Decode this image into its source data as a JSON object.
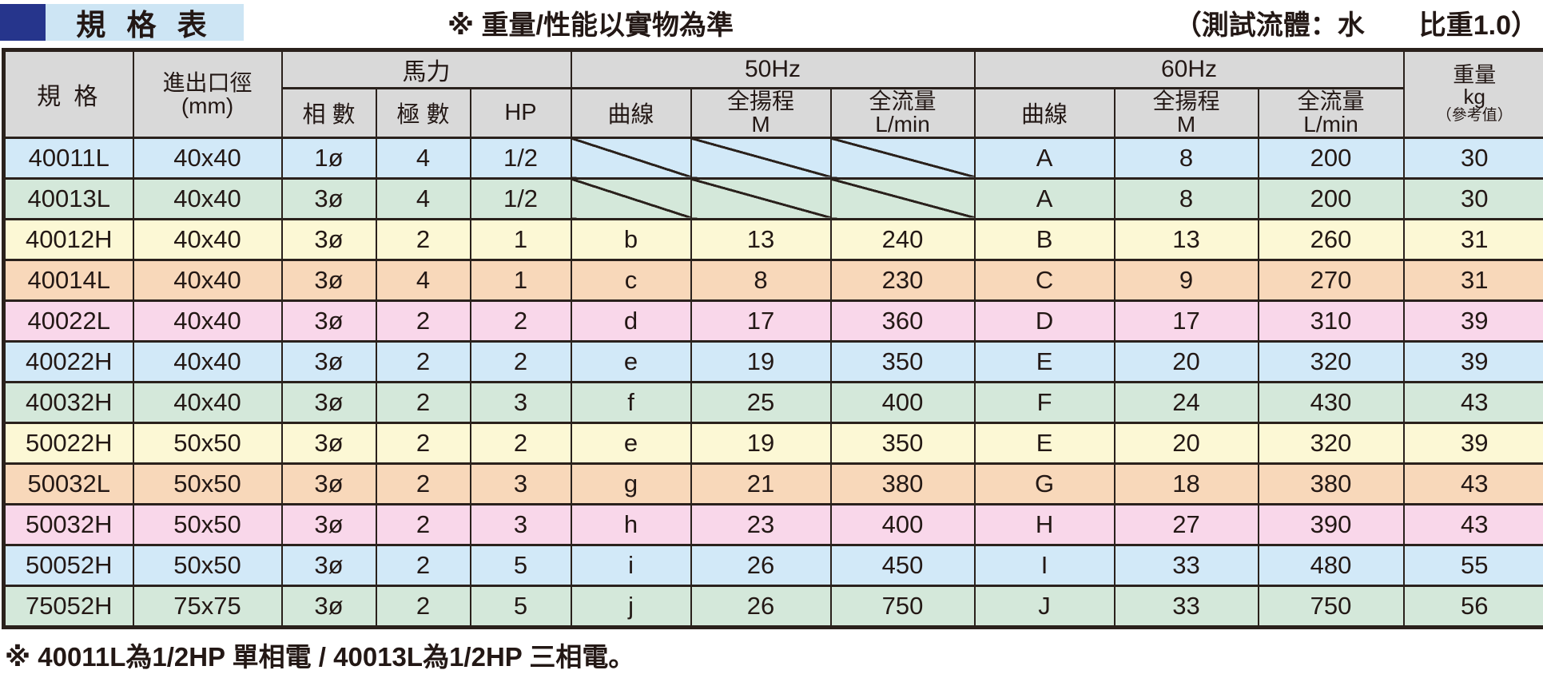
{
  "page": {
    "title": "規 格 表",
    "note_center": "※ 重量/性能以實物為準",
    "note_right": "（測試流體：水　　比重1.0）",
    "footnote": "※ 40011L為1/2HP 單相電 / 40013L為1/2HP 三相電。"
  },
  "table": {
    "headers": {
      "spec": "規 格",
      "port_line1": "進出口徑",
      "port_line2": "(mm)",
      "power_group": "馬力",
      "phase": "相 數",
      "pole": "極 數",
      "hp": "HP",
      "hz50_group": "50Hz",
      "hz60_group": "60Hz",
      "curve": "曲線",
      "head": "全揚程",
      "head_unit": "M",
      "flow": "全流量",
      "flow_unit": "L/min",
      "weight_line1": "重量",
      "weight_line2": "kg",
      "weight_line3": "（參考值）"
    },
    "rows": [
      {
        "spec": "40011L",
        "port": "40x40",
        "phase": "1ø",
        "pole": "4",
        "hp": "1/2",
        "slash": true,
        "c50": "",
        "h50": "",
        "f50": "",
        "c60": "A",
        "h60": "8",
        "f60": "200",
        "wt": "30",
        "color": "blue"
      },
      {
        "spec": "40013L",
        "port": "40x40",
        "phase": "3ø",
        "pole": "4",
        "hp": "1/2",
        "slash": true,
        "c50": "",
        "h50": "",
        "f50": "",
        "c60": "A",
        "h60": "8",
        "f60": "200",
        "wt": "30",
        "color": "green"
      },
      {
        "spec": "40012H",
        "port": "40x40",
        "phase": "3ø",
        "pole": "2",
        "hp": "1",
        "slash": false,
        "c50": "b",
        "h50": "13",
        "f50": "240",
        "c60": "B",
        "h60": "13",
        "f60": "260",
        "wt": "31",
        "color": "yellow"
      },
      {
        "spec": "40014L",
        "port": "40x40",
        "phase": "3ø",
        "pole": "4",
        "hp": "1",
        "slash": false,
        "c50": "c",
        "h50": "8",
        "f50": "230",
        "c60": "C",
        "h60": "9",
        "f60": "270",
        "wt": "31",
        "color": "orange"
      },
      {
        "spec": "40022L",
        "port": "40x40",
        "phase": "3ø",
        "pole": "2",
        "hp": "2",
        "slash": false,
        "c50": "d",
        "h50": "17",
        "f50": "360",
        "c60": "D",
        "h60": "17",
        "f60": "310",
        "wt": "39",
        "color": "pink"
      },
      {
        "spec": "40022H",
        "port": "40x40",
        "phase": "3ø",
        "pole": "2",
        "hp": "2",
        "slash": false,
        "c50": "e",
        "h50": "19",
        "f50": "350",
        "c60": "E",
        "h60": "20",
        "f60": "320",
        "wt": "39",
        "color": "blue"
      },
      {
        "spec": "40032H",
        "port": "40x40",
        "phase": "3ø",
        "pole": "2",
        "hp": "3",
        "slash": false,
        "c50": "f",
        "h50": "25",
        "f50": "400",
        "c60": "F",
        "h60": "24",
        "f60": "430",
        "wt": "43",
        "color": "green"
      },
      {
        "spec": "50022H",
        "port": "50x50",
        "phase": "3ø",
        "pole": "2",
        "hp": "2",
        "slash": false,
        "c50": "e",
        "h50": "19",
        "f50": "350",
        "c60": "E",
        "h60": "20",
        "f60": "320",
        "wt": "39",
        "color": "yellow"
      },
      {
        "spec": "50032L",
        "port": "50x50",
        "phase": "3ø",
        "pole": "2",
        "hp": "3",
        "slash": false,
        "c50": "g",
        "h50": "21",
        "f50": "380",
        "c60": "G",
        "h60": "18",
        "f60": "380",
        "wt": "43",
        "color": "orange"
      },
      {
        "spec": "50032H",
        "port": "50x50",
        "phase": "3ø",
        "pole": "2",
        "hp": "3",
        "slash": false,
        "c50": "h",
        "h50": "23",
        "f50": "400",
        "c60": "H",
        "h60": "27",
        "f60": "390",
        "wt": "43",
        "color": "pink"
      },
      {
        "spec": "50052H",
        "port": "50x50",
        "phase": "3ø",
        "pole": "2",
        "hp": "5",
        "slash": false,
        "c50": "i",
        "h50": "26",
        "f50": "450",
        "c60": "I",
        "h60": "33",
        "f60": "480",
        "wt": "55",
        "color": "blue"
      },
      {
        "spec": "75052H",
        "port": "75x75",
        "phase": "3ø",
        "pole": "2",
        "hp": "5",
        "slash": false,
        "c50": "j",
        "h50": "26",
        "f50": "750",
        "c60": "J",
        "h60": "33",
        "f60": "750",
        "wt": "56",
        "color": "green"
      }
    ],
    "colors": {
      "blue": "#d2e9f8",
      "green": "#d4e8da",
      "yellow": "#fcf8d5",
      "orange": "#f8d8ba",
      "pink": "#f9d7ea",
      "header_bg": "#d9d9d9",
      "banner_bg": "#cde5f4",
      "banner_square": "#26358c",
      "border": "#2a211c",
      "text": "#231815"
    }
  }
}
